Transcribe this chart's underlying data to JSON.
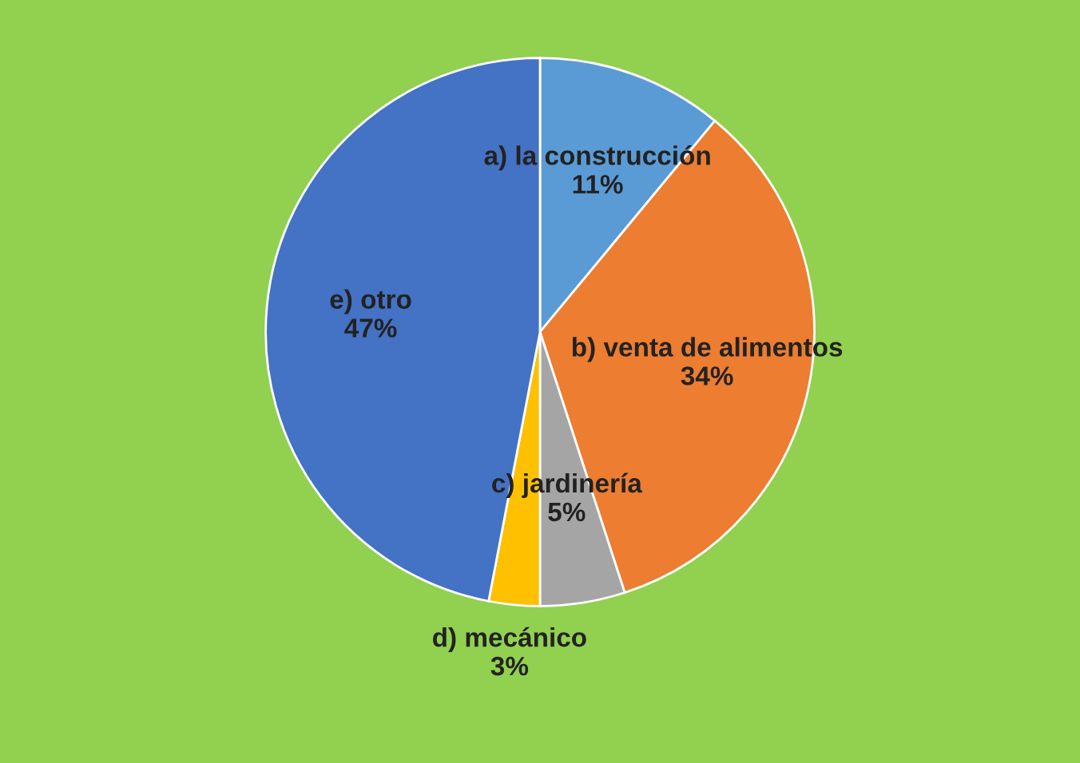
{
  "chart_data": {
    "type": "pie",
    "categories": [
      "a) la construcción",
      "b) venta de alimentos",
      "c) jardinería",
      "d) mecánico",
      "e) otro"
    ],
    "values": [
      11,
      34,
      5,
      3,
      47
    ],
    "value_labels": [
      "11%",
      "34%",
      "5%",
      "3%",
      "47%"
    ],
    "colors": [
      "#5b9bd5",
      "#ed7d31",
      "#a5a5a5",
      "#ffc000",
      "#4472c4"
    ],
    "legend": false
  }
}
